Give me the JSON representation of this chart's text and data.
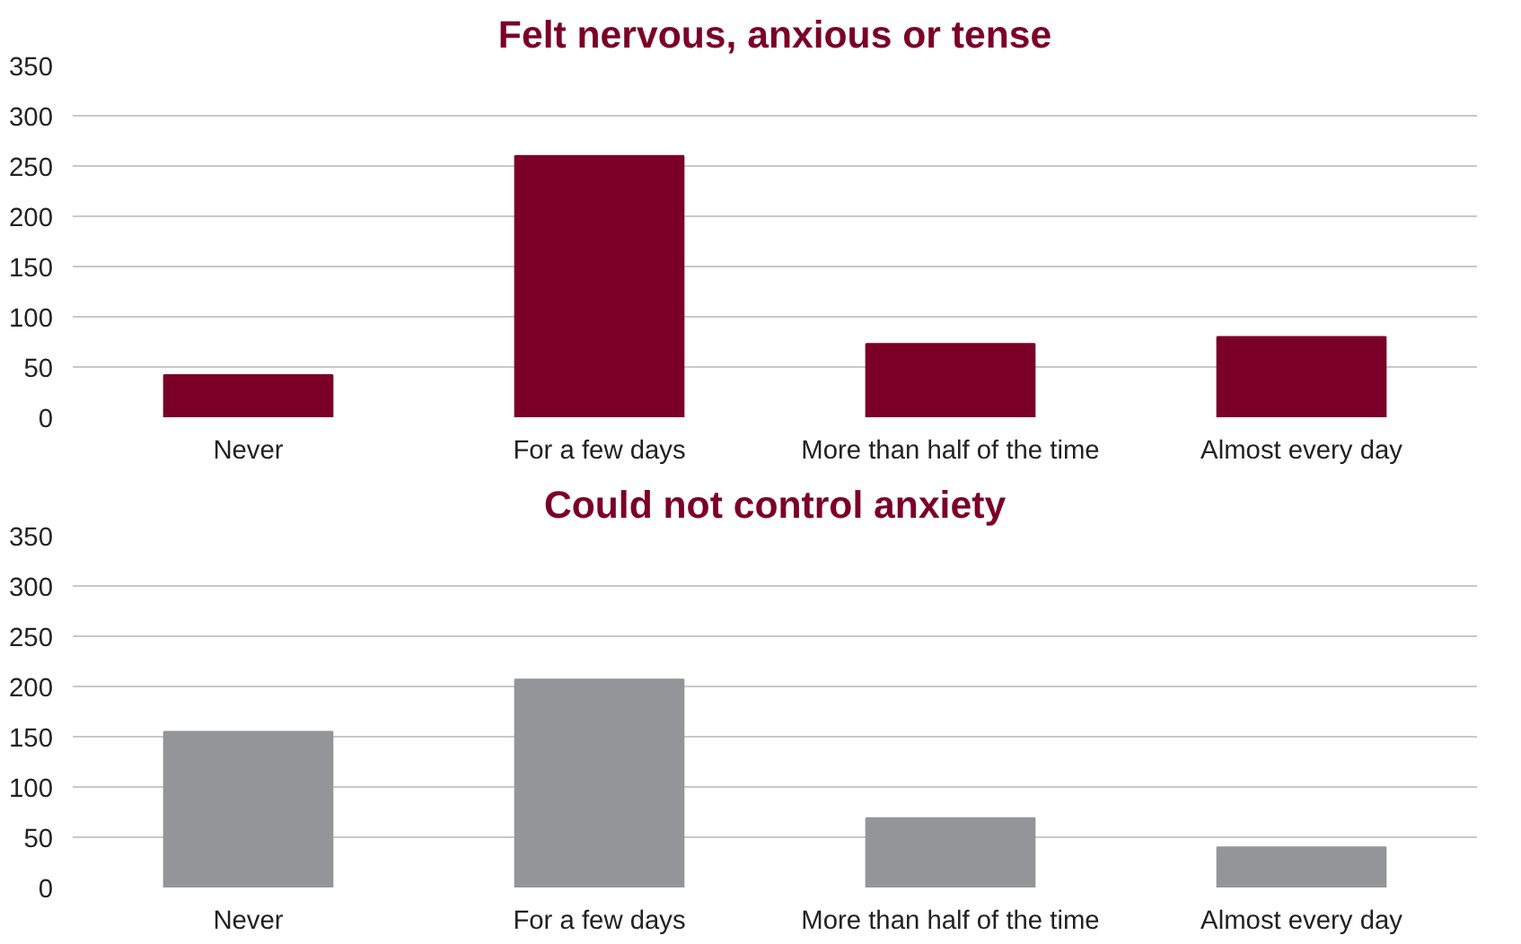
{
  "chart_data": [
    {
      "type": "bar",
      "title": "Felt nervous, anxious or tense",
      "categories": [
        "Never",
        "For a few days",
        "More than half of the time",
        "Almost every day"
      ],
      "values": [
        42,
        260,
        73,
        80
      ],
      "color": "#7b0028",
      "ylim": [
        0,
        350
      ],
      "yticks": [
        0,
        50,
        100,
        150,
        200,
        250,
        300,
        350
      ],
      "grid": "y"
    },
    {
      "type": "bar",
      "title": "Could not control anxiety",
      "categories": [
        "Never",
        "For a few days",
        "More than half of the time",
        "Almost every day"
      ],
      "values": [
        155,
        207,
        69,
        40
      ],
      "color": "#939598",
      "ylim": [
        0,
        350
      ],
      "yticks": [
        0,
        50,
        100,
        150,
        200,
        250,
        300,
        350
      ],
      "grid": "y"
    }
  ]
}
